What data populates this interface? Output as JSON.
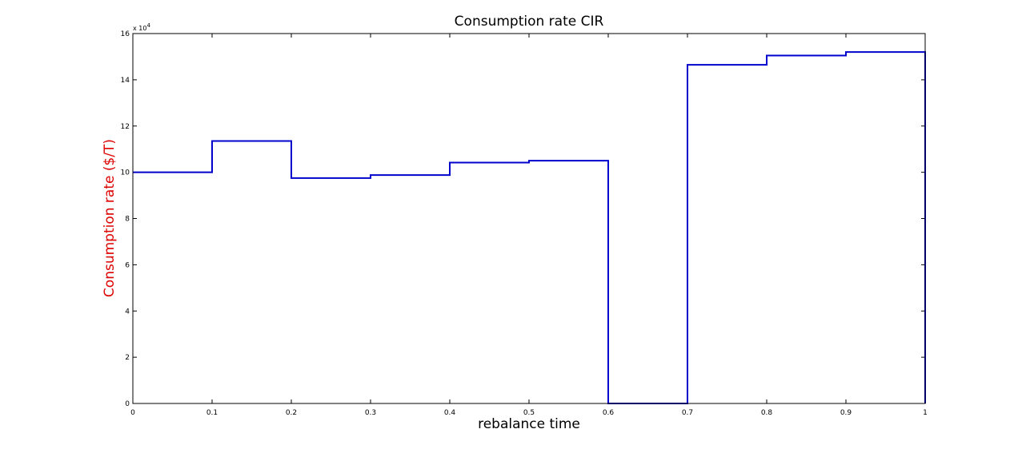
{
  "chart_data": {
    "type": "line",
    "step": "post",
    "title": "Consumption rate CIR",
    "xlabel": "rebalance time",
    "ylabel": "Consumption rate ($/T)",
    "ylabel_color": "#dd0000",
    "series_color": "#0000cc",
    "y_multiplier_label": "x 10",
    "y_multiplier_exponent": "4",
    "xlim": [
      0,
      1
    ],
    "ylim": [
      0,
      16
    ],
    "x_ticks": [
      0,
      0.1,
      0.2,
      0.3,
      0.4,
      0.5,
      0.6,
      0.7,
      0.8,
      0.9,
      1
    ],
    "x_tick_labels": [
      "0",
      "0.1",
      "0.2",
      "0.3",
      "0.4",
      "0.5",
      "0.6",
      "0.7",
      "0.8",
      "0.9",
      "1"
    ],
    "y_ticks": [
      0,
      2,
      4,
      6,
      8,
      10,
      12,
      14,
      16
    ],
    "y_tick_labels": [
      "0",
      "2",
      "4",
      "6",
      "8",
      "10",
      "12",
      "14",
      "16"
    ],
    "series": [
      {
        "x": [
          0,
          0.1,
          0.2,
          0.3,
          0.4,
          0.5,
          0.6,
          0.7,
          0.8,
          0.9
        ],
        "values": [
          10.0,
          11.35,
          9.75,
          9.88,
          10.42,
          10.5,
          0.0,
          14.65,
          15.05,
          15.2
        ]
      }
    ],
    "grid": false
  }
}
